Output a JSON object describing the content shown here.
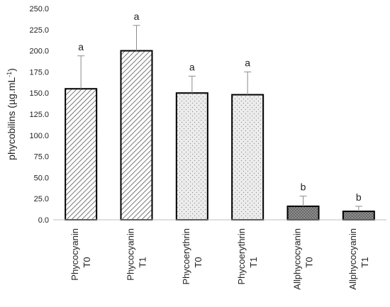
{
  "chart_data": {
    "type": "bar",
    "ylabel": "phycobilins (µg.mL",
    "ylabel_superscript": "-1",
    "ylabel_close": ")",
    "ylim": [
      0,
      250
    ],
    "yticks": [
      "0.0",
      "25.0",
      "50.0",
      "75.0",
      "100.0",
      "125.0",
      "150.0",
      "175.0",
      "200.0",
      "225.0",
      "250.0"
    ],
    "grid": false,
    "legend": "none",
    "categories": [
      {
        "line1": "Phycocyanin",
        "line2": "T0"
      },
      {
        "line1": "Phycocyanin",
        "line2": "T1"
      },
      {
        "line1": "Phycoerythrin",
        "line2": "T0"
      },
      {
        "line1": "Phycoerythrin",
        "line2": "T1"
      },
      {
        "line1": "Allphycocyanin",
        "line2": "T0"
      },
      {
        "line1": "Allphycocyanin",
        "line2": "T1"
      }
    ],
    "values": [
      155,
      200,
      150,
      148,
      16,
      10
    ],
    "errors": [
      39,
      30,
      20,
      27,
      12,
      6
    ],
    "significance": [
      "a",
      "a",
      "a",
      "a",
      "b",
      "b"
    ],
    "patterns": [
      "diagonal-hatch",
      "diagonal-hatch",
      "light-dots",
      "light-dots",
      "dark-dots",
      "dark-dots"
    ],
    "colors": {
      "bar_outline": "#000000",
      "hatch_line": "#555555",
      "light_fill": "#ececec",
      "dot_fill": "#888888",
      "dark_fill": "#8e8e8e",
      "dark_dot": "#3a3a3a",
      "error_bar": "#8c8c8c",
      "axis": "#bfbfbf"
    }
  }
}
